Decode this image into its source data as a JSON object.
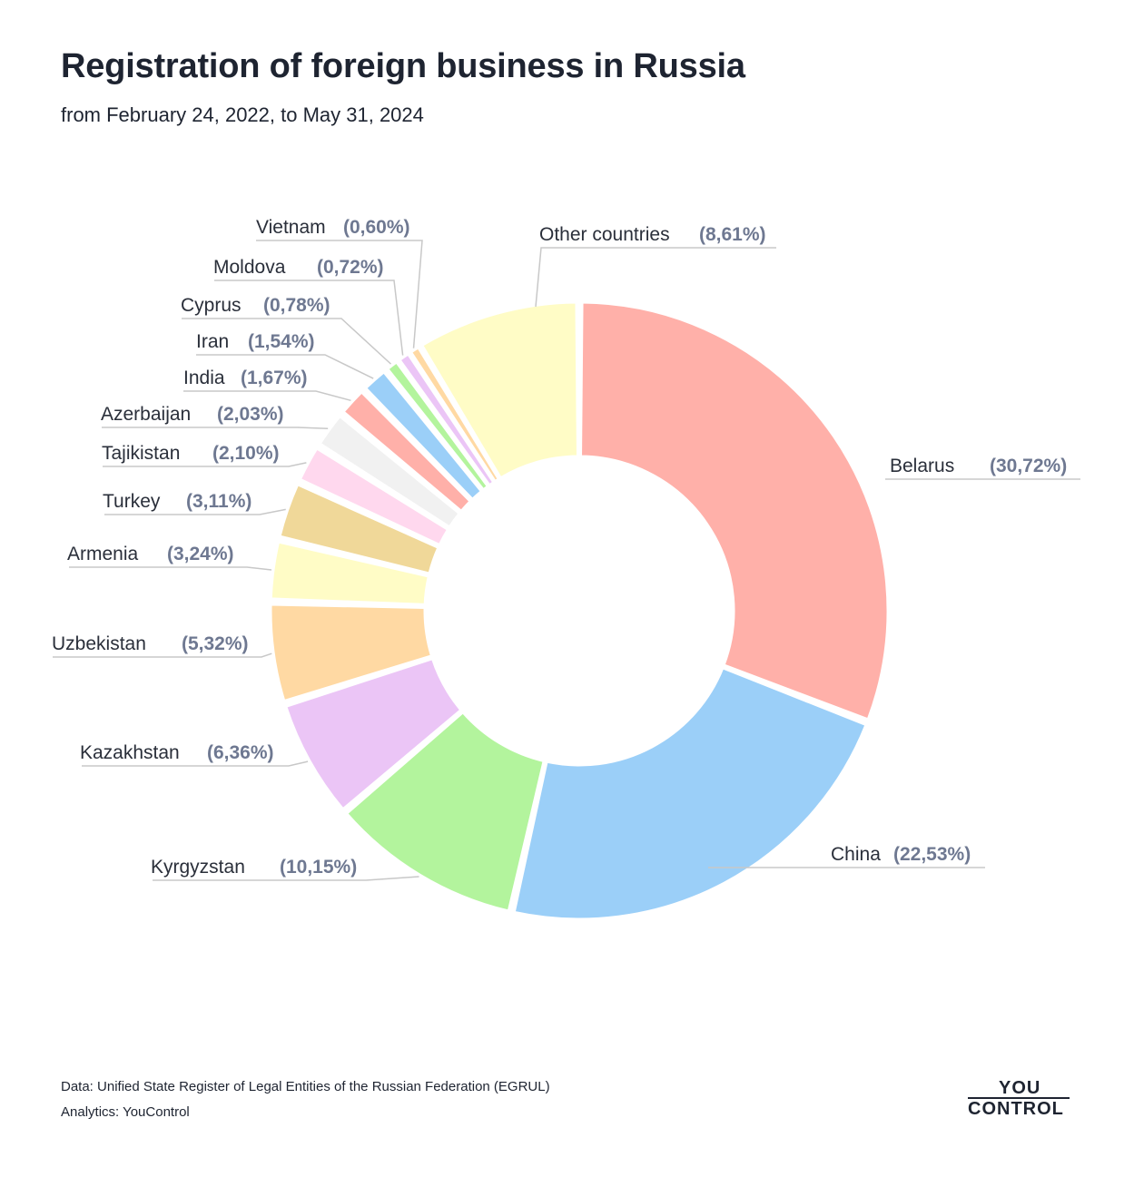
{
  "header": {
    "title": "Registration of foreign business in Russia",
    "subtitle": "from February 24, 2022, to May 31, 2024"
  },
  "footer": {
    "data_source": "Data: Unified State Register of Legal Entities of the Russian Federation (EGRUL)",
    "analytics": "Analytics: YouControl"
  },
  "logo": {
    "top": "YOU",
    "bottom": "CONTROL"
  },
  "chart_data": {
    "type": "pie",
    "variant": "donut",
    "title": "Registration of foreign business in Russia",
    "subtitle": "from February 24, 2022, to May 31, 2024",
    "order": "clockwise from top",
    "slices": [
      {
        "name": "Belarus",
        "value": 30.72,
        "label": "(30,72%)",
        "color": "#ffb0a9"
      },
      {
        "name": "China",
        "value": 22.53,
        "label": "(22,53%)",
        "color": "#9bcff8"
      },
      {
        "name": "Kyrgyzstan",
        "value": 10.15,
        "label": "(10,15%)",
        "color": "#b3f49d"
      },
      {
        "name": "Kazakhstan",
        "value": 6.36,
        "label": "(6,36%)",
        "color": "#ebc5f6"
      },
      {
        "name": "Uzbekistan",
        "value": 5.32,
        "label": "(5,32%)",
        "color": "#ffd9a3"
      },
      {
        "name": "Armenia",
        "value": 3.24,
        "label": "(3,24%)",
        "color": "#fffcc6"
      },
      {
        "name": "Turkey",
        "value": 3.11,
        "label": "(3,11%)",
        "color": "#f0d899"
      },
      {
        "name": "Tajikistan",
        "value": 2.1,
        "label": "(2,10%)",
        "color": "#ffd8ee"
      },
      {
        "name": "Azerbaijan",
        "value": 2.03,
        "label": "(2,03%)",
        "color": "#f1f1f1"
      },
      {
        "name": "India",
        "value": 1.67,
        "label": "(1,67%)",
        "color": "#ffb0a9"
      },
      {
        "name": "Iran",
        "value": 1.54,
        "label": "(1,54%)",
        "color": "#9bcff8"
      },
      {
        "name": "Cyprus",
        "value": 0.78,
        "label": "(0,78%)",
        "color": "#b3f49d"
      },
      {
        "name": "Moldova",
        "value": 0.72,
        "label": "(0,72%)",
        "color": "#ebc5f6"
      },
      {
        "name": "Vietnam",
        "value": 0.6,
        "label": "(0,60%)",
        "color": "#ffd9a3"
      },
      {
        "name": "Other countries",
        "value": 8.61,
        "label": "(8,61%)",
        "color": "#fffcc6"
      }
    ],
    "leader_color": "#c8c8c8",
    "legend": "none (labels with leader lines)"
  }
}
